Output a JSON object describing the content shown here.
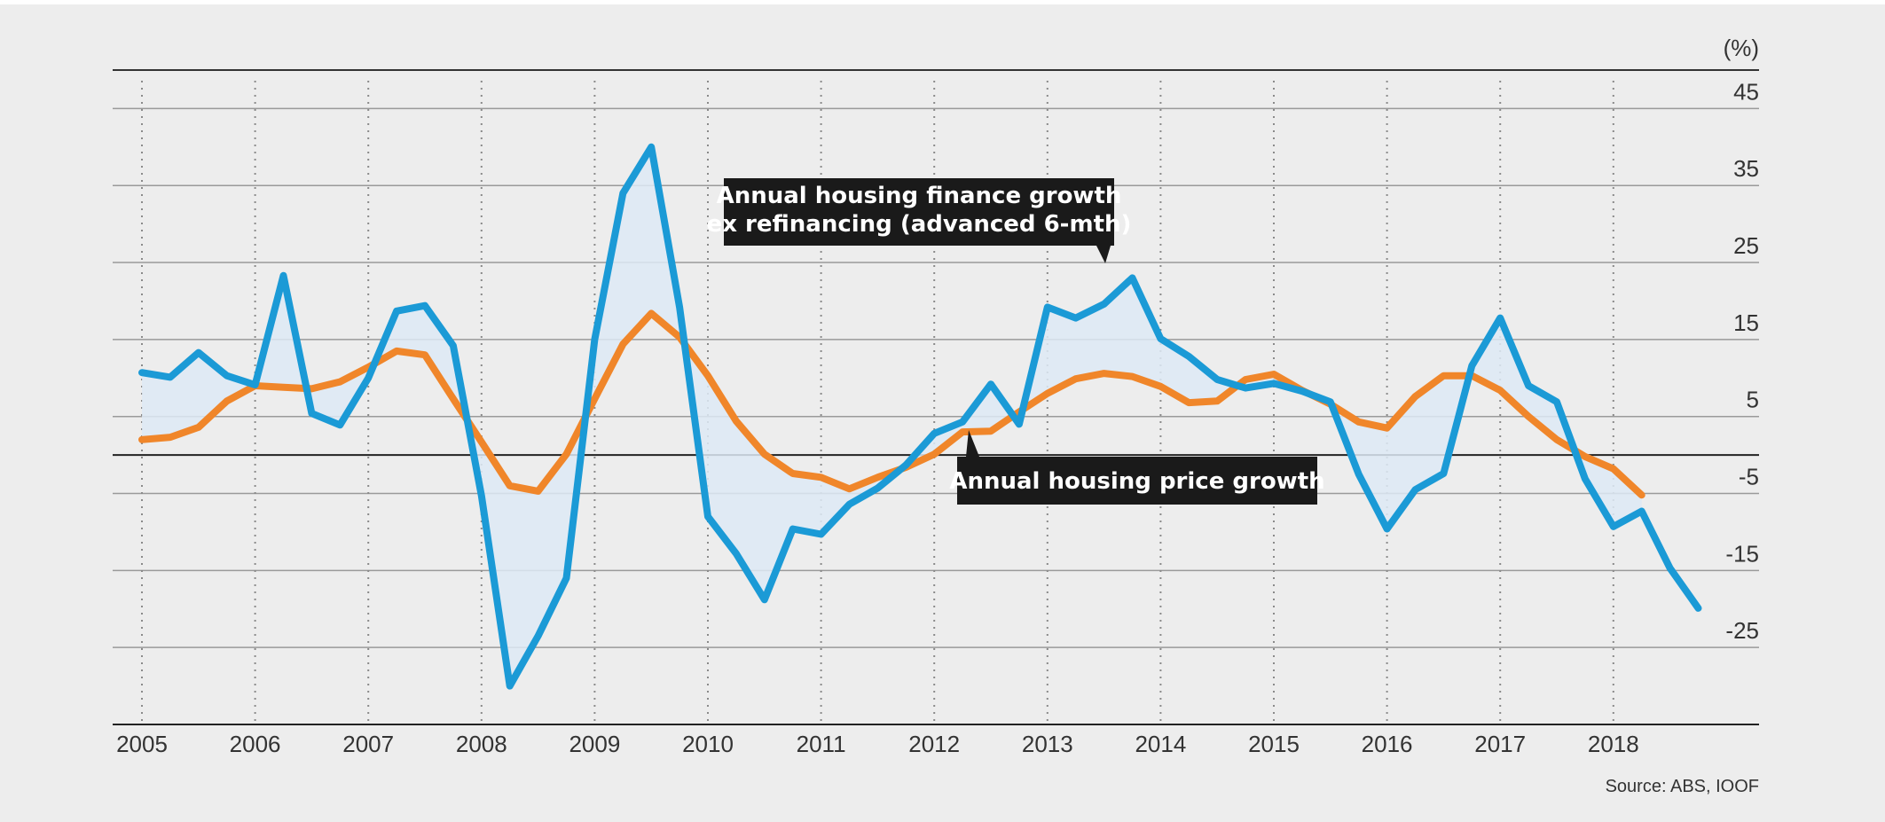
{
  "chart_data": {
    "type": "line",
    "unit_label": "(%)",
    "ylim": [
      -35,
      50
    ],
    "y_ticks": [
      45,
      35,
      25,
      15,
      5,
      -5,
      -15,
      -25
    ],
    "x_ticks": [
      "2005",
      "2006",
      "2007",
      "2008",
      "2009",
      "2010",
      "2011",
      "2012",
      "2013",
      "2014",
      "2015",
      "2016",
      "2017",
      "2018"
    ],
    "grid": "horizontal solid lines, vertical dotted lines at each year",
    "zero_line": 0,
    "series": [
      {
        "name": "Annual housing finance growth ex refinancing (advanced 6-mth)",
        "label_lines": [
          "Annual housing finance growth",
          "ex refinancing (advanced 6-mth)"
        ],
        "color": "#1b9ad6",
        "x": [
          2005.0,
          2005.25,
          2005.5,
          2005.75,
          2006.0,
          2006.25,
          2006.5,
          2006.75,
          2007.0,
          2007.25,
          2007.5,
          2007.75,
          2008.0,
          2008.25,
          2008.5,
          2008.75,
          2009.0,
          2009.25,
          2009.5,
          2009.75,
          2010.0,
          2010.25,
          2010.5,
          2010.75,
          2011.0,
          2011.25,
          2011.5,
          2011.75,
          2012.0,
          2012.25,
          2012.5,
          2012.75,
          2013.0,
          2013.25,
          2013.5,
          2013.75,
          2014.0,
          2014.25,
          2014.5,
          2014.75,
          2015.0,
          2015.25,
          2015.5,
          2015.75,
          2016.0,
          2016.25,
          2016.5,
          2016.75,
          2017.0,
          2017.25,
          2017.5,
          2017.75,
          2018.0,
          2018.25,
          2018.5,
          2018.75
        ],
        "values": [
          10.7,
          10.1,
          13.3,
          10.3,
          9.1,
          23.3,
          5.4,
          3.9,
          10.0,
          18.7,
          19.4,
          14.2,
          -5.3,
          -30.0,
          -23.5,
          -16.0,
          15.0,
          34.0,
          40.0,
          19.2,
          -8.0,
          -12.8,
          -18.8,
          -9.6,
          -10.3,
          -6.4,
          -4.3,
          -1.3,
          2.8,
          4.3,
          9.2,
          4.0,
          19.2,
          17.8,
          19.6,
          23.0,
          15.1,
          12.8,
          9.8,
          8.7,
          9.3,
          8.3,
          6.9,
          -2.5,
          -9.6,
          -4.5,
          -2.4,
          11.6,
          17.8,
          9.0,
          6.9,
          -3.1,
          -9.3,
          -7.3,
          -14.7,
          -19.9
        ]
      },
      {
        "name": "Annual housing price growth",
        "color": "#f0862a",
        "x": [
          2005.0,
          2005.25,
          2005.5,
          2005.75,
          2006.0,
          2006.25,
          2006.5,
          2006.75,
          2007.0,
          2007.25,
          2007.5,
          2007.75,
          2008.0,
          2008.25,
          2008.5,
          2008.75,
          2009.0,
          2009.25,
          2009.5,
          2009.75,
          2010.0,
          2010.25,
          2010.5,
          2010.75,
          2011.0,
          2011.25,
          2011.5,
          2011.75,
          2012.0,
          2012.25,
          2012.5,
          2012.75,
          2013.0,
          2013.25,
          2013.5,
          2013.75,
          2014.0,
          2014.25,
          2014.5,
          2014.75,
          2015.0,
          2015.25,
          2015.5,
          2015.75,
          2016.0,
          2016.25,
          2016.5,
          2016.75,
          2017.0,
          2017.25,
          2017.5,
          2017.75,
          2018.0,
          2018.25
        ],
        "values": [
          2.0,
          2.3,
          3.6,
          7.0,
          9.0,
          8.8,
          8.6,
          9.5,
          11.4,
          13.5,
          13.0,
          7.3,
          1.7,
          -4.0,
          -4.7,
          0.1,
          7.3,
          14.4,
          18.4,
          15.3,
          10.3,
          4.4,
          0.1,
          -2.4,
          -2.9,
          -4.4,
          -2.9,
          -1.6,
          0.1,
          3.0,
          3.1,
          5.6,
          8.0,
          9.9,
          10.6,
          10.2,
          8.9,
          6.8,
          7.0,
          9.8,
          10.5,
          8.4,
          6.6,
          4.3,
          3.5,
          7.6,
          10.3,
          10.3,
          8.4,
          5.0,
          2.0,
          -0.2,
          -1.8,
          -5.2
        ]
      }
    ],
    "source": "Source: ABS, IOOF"
  }
}
